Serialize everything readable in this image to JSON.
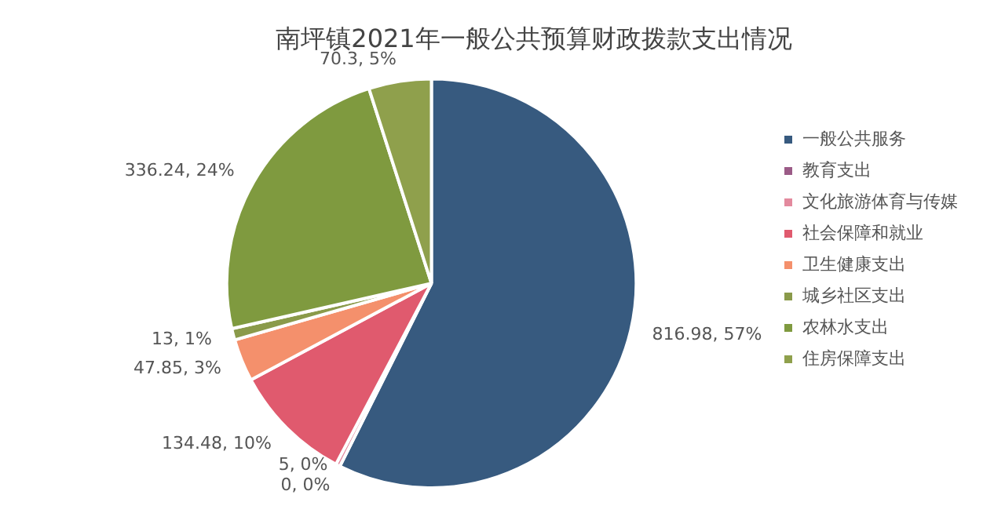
{
  "chart_data": {
    "type": "pie",
    "title": "南坪镇2021年一般公共预算财政拨款支出情况",
    "categories": [
      "一般公共服务",
      "教育支出",
      "文化旅游体育与传媒",
      "社会保障和就业",
      "卫生健康支出",
      "城乡社区支出",
      "农林水支出",
      "住房保障支出"
    ],
    "values": [
      816.98,
      0,
      5,
      134.48,
      47.85,
      13,
      336.24,
      70.3
    ],
    "value_labels": [
      "816.98, 57%",
      "0, 0%",
      "5, 0%",
      "134.48, 10%",
      "47.85, 3%",
      "13, 1%",
      "336.24, 24%",
      "70.3, 5%"
    ],
    "colors": [
      "#375a7f",
      "#9b5b87",
      "#e38a9e",
      "#e05a6e",
      "#f4906c",
      "#8a9a4a",
      "#7f9a3f",
      "#8fa04c"
    ],
    "legend": "right"
  }
}
